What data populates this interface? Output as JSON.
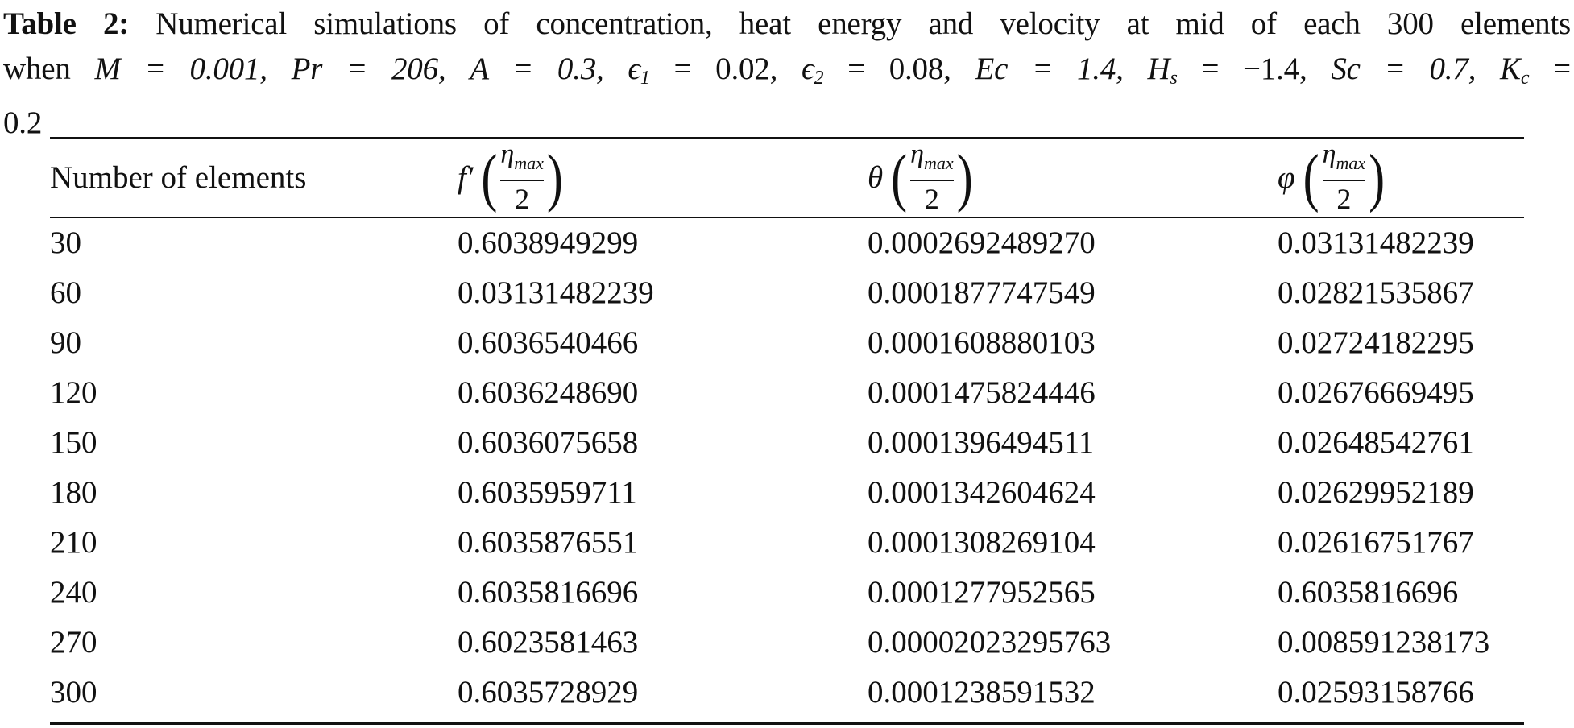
{
  "caption": {
    "label": "Table 2:",
    "line1": "Numerical simulations of concentration, heat energy and velocity at mid of each 300 elements",
    "line2_parts": {
      "when": "when",
      "M": "M = 0.001,",
      "Pr": "Pr = 206,",
      "A": "A = 0.3,",
      "e1": "ϵ",
      "e1_sub": "1",
      "e1_val": "= 0.02,",
      "e2": "ϵ",
      "e2_sub": "2",
      "e2_val": "= 0.08,",
      "Ec": "Ec = 1.4,",
      "Hs": "H",
      "Hs_sub": "s",
      "Hs_val": "= −1.4,",
      "Sc": "Sc = 0.7,",
      "Kc": "K",
      "Kc_sub": "c",
      "Kc_val": "="
    },
    "line3": "0.2"
  },
  "table": {
    "headers": {
      "col0": "Number of elements",
      "col1_symbol": "f′",
      "col2_symbol": "θ",
      "col3_symbol": "φ",
      "frac_num": "η",
      "frac_num_sub": "max",
      "frac_den": "2",
      "lparen": "(",
      "rparen": ")"
    },
    "rows": [
      [
        "30",
        "0.6038949299",
        "0.0002692489270",
        "0.03131482239"
      ],
      [
        "60",
        "0.03131482239",
        "0.0001877747549",
        "0.02821535867"
      ],
      [
        "90",
        "0.6036540466",
        "0.0001608880103",
        "0.02724182295"
      ],
      [
        "120",
        "0.6036248690",
        "0.0001475824446",
        "0.02676669495"
      ],
      [
        "150",
        "0.6036075658",
        "0.0001396494511",
        "0.02648542761"
      ],
      [
        "180",
        "0.6035959711",
        "0.0001342604624",
        "0.02629952189"
      ],
      [
        "210",
        "0.6035876551",
        "0.0001308269104",
        "0.02616751767"
      ],
      [
        "240",
        "0.6035816696",
        "0.0001277952565",
        "0.6035816696"
      ],
      [
        "270",
        "0.6023581463",
        "0.00002023295763",
        "0.008591238173"
      ],
      [
        "300",
        "0.6035728929",
        "0.0001238591532",
        "0.02593158766"
      ]
    ]
  }
}
